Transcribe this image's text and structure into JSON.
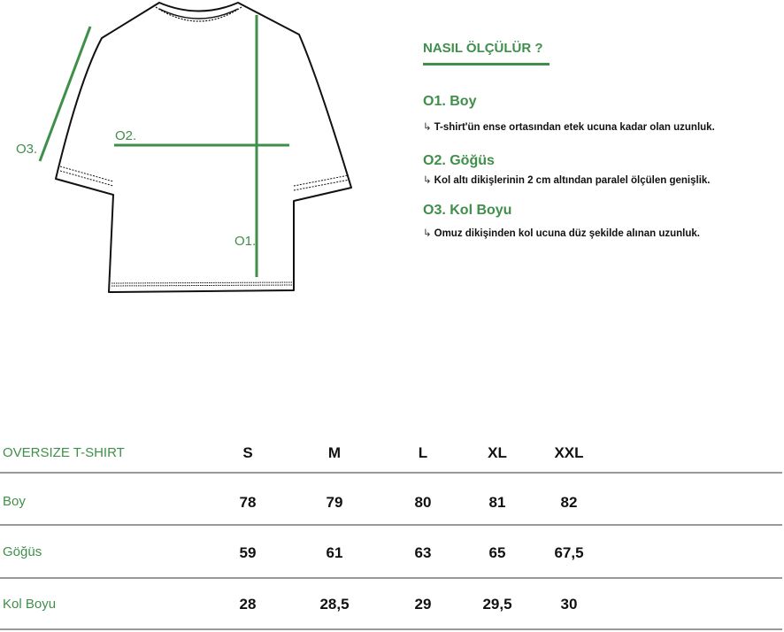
{
  "colors": {
    "accent": "#3f8f4a",
    "text": "#111111",
    "divider": "#999999"
  },
  "diagram": {
    "labels": [
      "O1.",
      "O2.",
      "O3."
    ]
  },
  "guide": {
    "title": "NASIL ÖLÇÜLÜR ?",
    "arrow": "↳",
    "steps": [
      {
        "title": "O1. Boy",
        "desc": "T-shirt'ün ense ortasından etek ucuna kadar olan uzunluk."
      },
      {
        "title": "O2. Göğüs",
        "desc": "Kol altı dikişlerinin 2 cm altından paralel ölçülen genişlik."
      },
      {
        "title": "O3. Kol Boyu",
        "desc": "Omuz dikişinden kol ucuna düz şekilde alınan uzunluk."
      }
    ]
  },
  "table": {
    "title": "OVERSIZE T-SHIRT",
    "sizes": [
      "S",
      "M",
      "L",
      "XL",
      "XXL"
    ],
    "rows": [
      {
        "label": "Boy",
        "values": [
          "78",
          "79",
          "80",
          "81",
          "82"
        ]
      },
      {
        "label": "Göğüs",
        "values": [
          "59",
          "61",
          "63",
          "65",
          "67,5"
        ]
      },
      {
        "label": "Kol Boyu",
        "values": [
          "28",
          "28,5",
          "29",
          "29,5",
          "30"
        ]
      }
    ]
  }
}
